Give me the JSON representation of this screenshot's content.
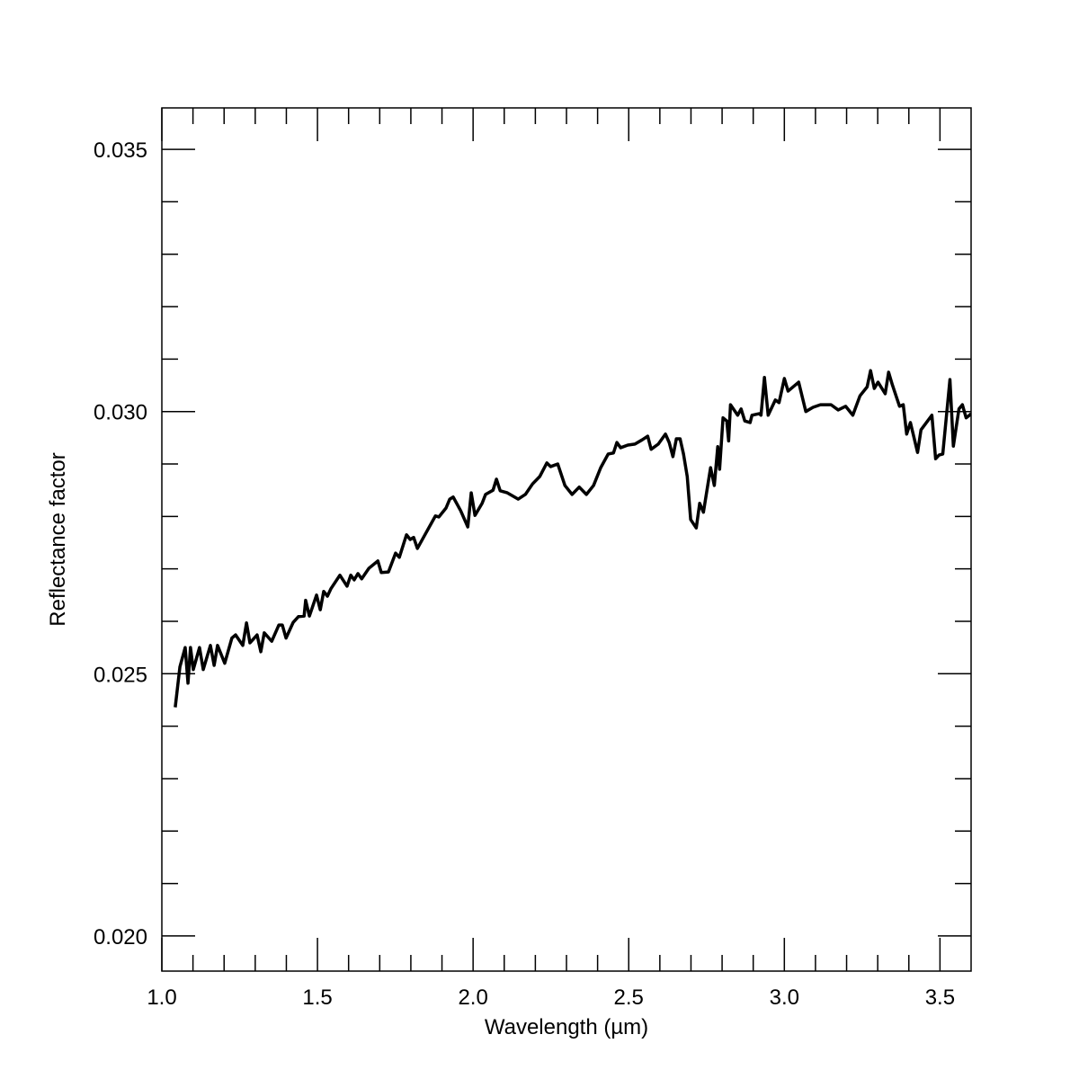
{
  "chart_data": {
    "type": "line",
    "xlabel": "Wavelength (µm)",
    "ylabel": "Reflectance factor",
    "xlim": [
      1.0,
      3.6
    ],
    "ylim": [
      0.01933,
      0.03579
    ],
    "xticks": [
      {
        "value": 1.0,
        "label": "1.0"
      },
      1.5,
      {
        "value": 2.0,
        "label": "2.0"
      },
      2.5,
      {
        "value": 3.0,
        "label": "3.0"
      },
      3.5
    ],
    "yticks": [
      {
        "value": 0.02,
        "label": "0.020"
      },
      0.025,
      {
        "value": 0.03,
        "label": "0.030"
      },
      0.035
    ],
    "xminorticks": [
      1.1,
      1.2,
      1.3,
      1.4,
      1.6,
      1.7,
      1.8,
      1.9,
      2.1,
      2.2,
      2.3,
      2.4,
      2.6,
      2.7,
      2.8,
      2.9,
      3.1,
      3.2,
      3.3,
      3.4
    ],
    "yminorticks": [
      0.021,
      0.022,
      0.023,
      0.024,
      0.026,
      0.027,
      0.028,
      0.029,
      0.031,
      0.032,
      0.033,
      0.034
    ],
    "series": [
      {
        "color": "#000000",
        "x": [
          1.043,
          1.058,
          1.075,
          1.084,
          1.092,
          1.101,
          1.121,
          1.133,
          1.156,
          1.168,
          1.179,
          1.202,
          1.225,
          1.237,
          1.26,
          1.272,
          1.283,
          1.306,
          1.318,
          1.329,
          1.353,
          1.376,
          1.387,
          1.399,
          1.422,
          1.439,
          1.457,
          1.462,
          1.474,
          1.497,
          1.509,
          1.52,
          1.532,
          1.543,
          1.572,
          1.595,
          1.607,
          1.618,
          1.63,
          1.642,
          1.665,
          1.694,
          1.705,
          1.728,
          1.751,
          1.763,
          1.786,
          1.798,
          1.809,
          1.821,
          1.85,
          1.879,
          1.89,
          1.913,
          1.925,
          1.936,
          1.96,
          1.983,
          1.994,
          2.006,
          2.029,
          2.04,
          2.064,
          2.075,
          2.087,
          2.11,
          2.145,
          2.168,
          2.191,
          2.214,
          2.237,
          2.249,
          2.272,
          2.295,
          2.318,
          2.341,
          2.364,
          2.387,
          2.41,
          2.434,
          2.451,
          2.462,
          2.474,
          2.497,
          2.52,
          2.543,
          2.561,
          2.572,
          2.595,
          2.618,
          2.63,
          2.642,
          2.653,
          2.665,
          2.676,
          2.688,
          2.699,
          2.717,
          2.728,
          2.74,
          2.763,
          2.775,
          2.786,
          2.792,
          2.803,
          2.815,
          2.821,
          2.827,
          2.85,
          2.861,
          2.873,
          2.89,
          2.896,
          2.919,
          2.925,
          2.936,
          2.948,
          2.971,
          2.983,
          3.0,
          3.012,
          3.046,
          3.069,
          3.092,
          3.116,
          3.15,
          3.173,
          3.197,
          3.22,
          3.243,
          3.266,
          3.277,
          3.289,
          3.301,
          3.324,
          3.335,
          3.347,
          3.37,
          3.382,
          3.393,
          3.405,
          3.428,
          3.439,
          3.474,
          3.486,
          3.497,
          3.509,
          3.532,
          3.543,
          3.561,
          3.572,
          3.584,
          3.595,
          3.6
        ],
        "values": [
          0.02436,
          0.02513,
          0.0255,
          0.02482,
          0.0255,
          0.02508,
          0.0255,
          0.02508,
          0.02554,
          0.02516,
          0.02554,
          0.0252,
          0.02568,
          0.02574,
          0.02554,
          0.02597,
          0.02559,
          0.02574,
          0.02542,
          0.02578,
          0.02562,
          0.02593,
          0.02593,
          0.02568,
          0.02598,
          0.02609,
          0.0261,
          0.0264,
          0.0261,
          0.0265,
          0.02622,
          0.02657,
          0.02648,
          0.02662,
          0.02688,
          0.02667,
          0.02688,
          0.02679,
          0.02691,
          0.02681,
          0.02701,
          0.02715,
          0.02693,
          0.02694,
          0.0273,
          0.02722,
          0.02765,
          0.02756,
          0.0276,
          0.02739,
          0.0277,
          0.02801,
          0.02799,
          0.02816,
          0.02833,
          0.02837,
          0.02811,
          0.0278,
          0.02845,
          0.02802,
          0.02825,
          0.02842,
          0.0285,
          0.02871,
          0.02849,
          0.02845,
          0.02833,
          0.02842,
          0.02862,
          0.02876,
          0.02902,
          0.02895,
          0.029,
          0.02859,
          0.02842,
          0.02856,
          0.02842,
          0.02859,
          0.02893,
          0.02919,
          0.02921,
          0.02941,
          0.02931,
          0.02936,
          0.02938,
          0.02946,
          0.02953,
          0.02928,
          0.02938,
          0.02957,
          0.02941,
          0.02914,
          0.02948,
          0.02948,
          0.02919,
          0.02876,
          0.02794,
          0.02778,
          0.02825,
          0.02808,
          0.02893,
          0.02859,
          0.02933,
          0.0289,
          0.02988,
          0.02982,
          0.02944,
          0.03013,
          0.02993,
          0.03005,
          0.02982,
          0.02979,
          0.02993,
          0.02996,
          0.02993,
          0.03065,
          0.02993,
          0.03022,
          0.03017,
          0.03063,
          0.03039,
          0.03056,
          0.03,
          0.03008,
          0.03013,
          0.03013,
          0.03003,
          0.0301,
          0.02993,
          0.0303,
          0.03047,
          0.03078,
          0.03044,
          0.03056,
          0.03034,
          0.03075,
          0.03051,
          0.0301,
          0.03013,
          0.02957,
          0.02979,
          0.02922,
          0.02965,
          0.02993,
          0.0291,
          0.02917,
          0.02919,
          0.03061,
          0.02934,
          0.03005,
          0.03013,
          0.02988,
          0.02993,
          0.02996
        ]
      }
    ]
  }
}
